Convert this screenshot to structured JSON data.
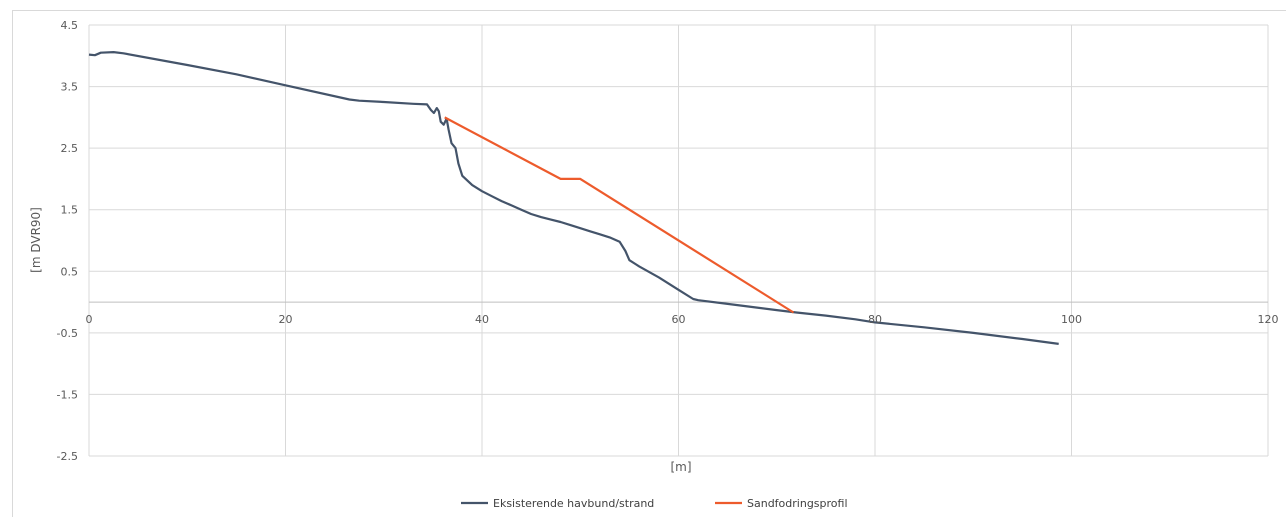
{
  "chart_data": {
    "type": "line",
    "xlabel": "[m]",
    "ylabel": "[m DVR90]",
    "xlim": [
      0,
      120
    ],
    "ylim": [
      -2.5,
      4.5
    ],
    "x_ticks": [
      "0",
      "20",
      "40",
      "60",
      "80",
      "100",
      "120"
    ],
    "y_ticks": [
      "4.5",
      "3.5",
      "2.5",
      "1.5",
      "0.5",
      "-0.5",
      "-1.5",
      "-2.5"
    ],
    "grid": true,
    "legend_position": "bottom",
    "series": [
      {
        "name": "Eksisterende havbund/strand",
        "color": "#44546a",
        "points": [
          [
            0,
            4.02
          ],
          [
            0.6,
            4.01
          ],
          [
            1.2,
            4.05
          ],
          [
            2.5,
            4.06
          ],
          [
            3.5,
            4.04
          ],
          [
            10,
            3.85
          ],
          [
            15,
            3.7
          ],
          [
            20,
            3.52
          ],
          [
            26.5,
            3.29
          ],
          [
            27.5,
            3.27
          ],
          [
            30,
            3.25
          ],
          [
            33,
            3.22
          ],
          [
            34.4,
            3.21
          ],
          [
            34.8,
            3.12
          ],
          [
            35.1,
            3.07
          ],
          [
            35.4,
            3.15
          ],
          [
            35.6,
            3.1
          ],
          [
            35.8,
            2.93
          ],
          [
            36.1,
            2.88
          ],
          [
            36.4,
            2.98
          ],
          [
            36.6,
            2.8
          ],
          [
            36.9,
            2.58
          ],
          [
            37.3,
            2.5
          ],
          [
            37.6,
            2.25
          ],
          [
            38,
            2.05
          ],
          [
            39,
            1.9
          ],
          [
            40,
            1.8
          ],
          [
            41,
            1.72
          ],
          [
            42,
            1.64
          ],
          [
            43,
            1.57
          ],
          [
            44,
            1.5
          ],
          [
            45,
            1.43
          ],
          [
            46,
            1.38
          ],
          [
            47,
            1.34
          ],
          [
            48,
            1.3
          ],
          [
            49,
            1.25
          ],
          [
            50,
            1.2
          ],
          [
            51,
            1.15
          ],
          [
            52,
            1.1
          ],
          [
            53,
            1.05
          ],
          [
            54,
            0.98
          ],
          [
            54.6,
            0.83
          ],
          [
            55,
            0.68
          ],
          [
            56,
            0.58
          ],
          [
            58,
            0.4
          ],
          [
            60,
            0.2
          ],
          [
            61.5,
            0.05
          ],
          [
            62,
            0.03
          ],
          [
            65,
            -0.03
          ],
          [
            68,
            -0.09
          ],
          [
            70,
            -0.13
          ],
          [
            72,
            -0.17
          ],
          [
            75,
            -0.22
          ],
          [
            78,
            -0.28
          ],
          [
            80,
            -0.33
          ],
          [
            85,
            -0.41
          ],
          [
            90,
            -0.5
          ],
          [
            95,
            -0.6
          ],
          [
            98.7,
            -0.68
          ]
        ]
      },
      {
        "name": "Sandfodringsprofil",
        "color": "#ed5b2c",
        "points": [
          [
            36.2,
            3.0
          ],
          [
            48,
            2.0
          ],
          [
            50,
            2.0
          ],
          [
            71.7,
            -0.17
          ]
        ]
      }
    ]
  }
}
